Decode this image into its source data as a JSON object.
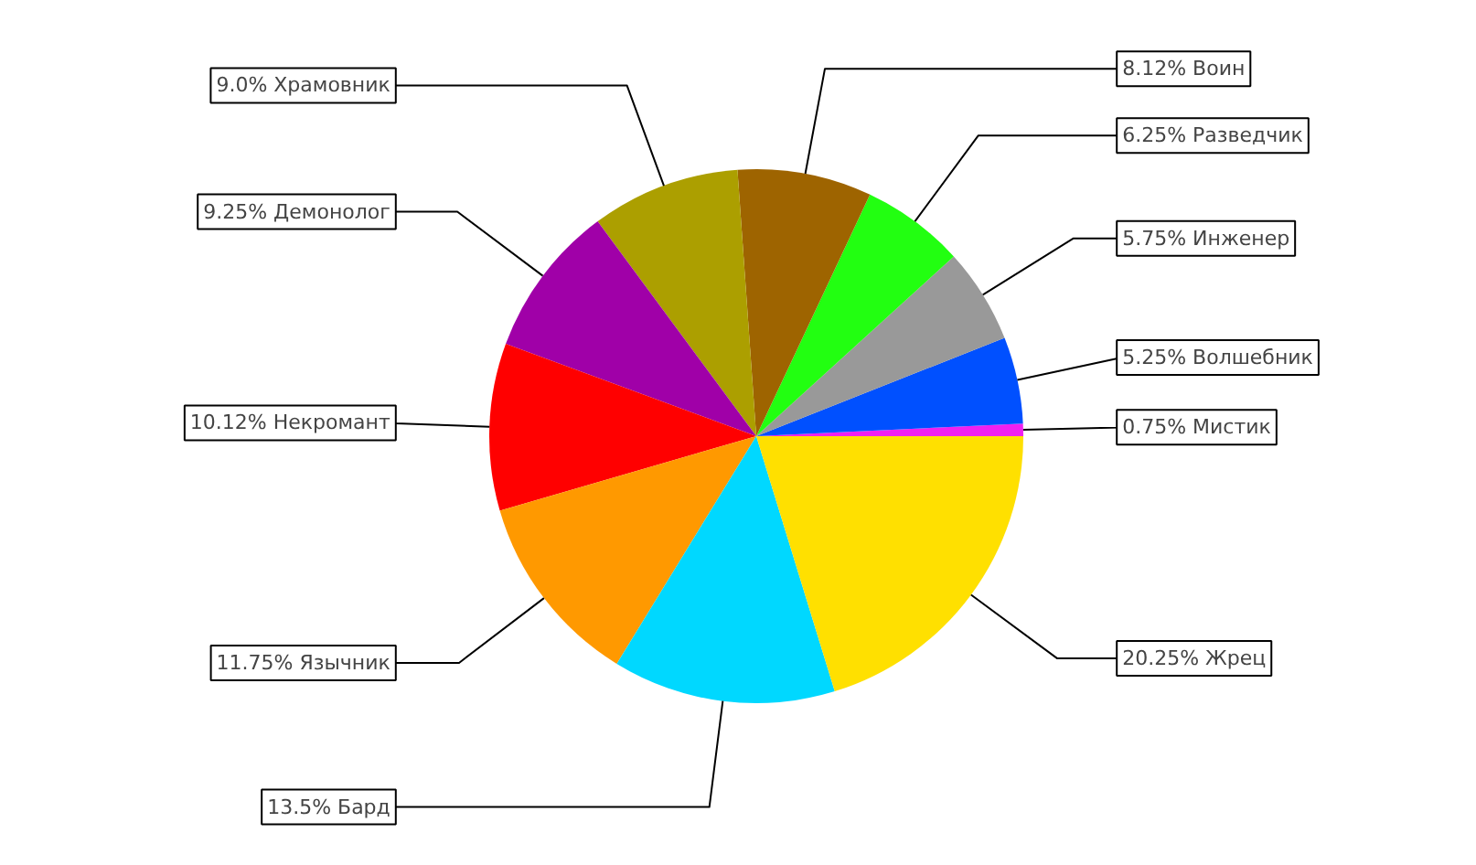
{
  "chart_data": {
    "type": "pie",
    "categories": [
      "Мистик",
      "Волшебник",
      "Инженер",
      "Разведчик",
      "Воин",
      "Храмовник",
      "Демонолог",
      "Некромант",
      "Язычник",
      "Бард",
      "Жрец"
    ],
    "values": [
      0.75,
      5.25,
      5.75,
      6.25,
      8.12,
      9.0,
      9.25,
      10.12,
      11.75,
      13.5,
      20.25
    ],
    "value_labels": [
      "0.75%",
      "5.25%",
      "5.75%",
      "6.25%",
      "8.12%",
      "9.0%",
      "9.25%",
      "10.12%",
      "11.75%",
      "13.5%",
      "20.25%"
    ],
    "colors": [
      "#f020f0",
      "#0050ff",
      "#999999",
      "#22ff11",
      "#9e6400",
      "#ac9f00",
      "#a000a8",
      "#ff0000",
      "#ff9900",
      "#00d8ff",
      "#ffe000"
    ]
  }
}
